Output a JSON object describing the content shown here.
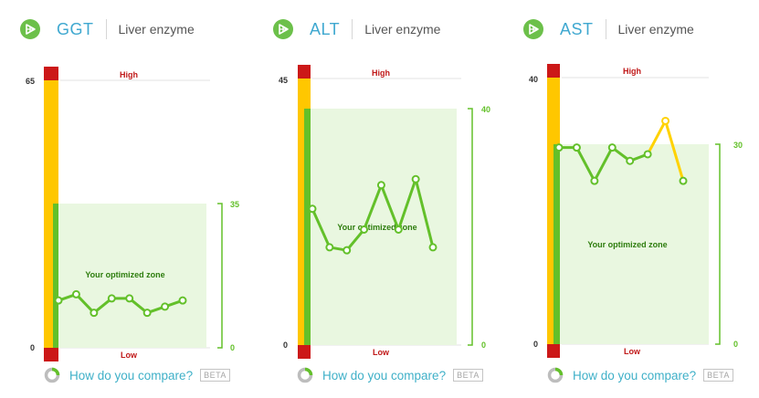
{
  "compare": {
    "label": "How do you compare?",
    "badge": "BETA"
  },
  "chart_data": [
    {
      "type": "line",
      "name": "GGT",
      "category": "Liver enzyme",
      "ylim": [
        0,
        65
      ],
      "y_ticks": [
        "65",
        "0"
      ],
      "high_label": "High",
      "low_label": "Low",
      "optimized_zone": {
        "label": "Your optimized zone",
        "min": 0,
        "max": 35,
        "max_label": "35",
        "min_label": "0"
      },
      "values": [
        11.5,
        13,
        8.5,
        12,
        12,
        8.5,
        10,
        11.5
      ]
    },
    {
      "type": "line",
      "name": "ALT",
      "category": "Liver enzyme",
      "ylim": [
        0,
        45
      ],
      "y_ticks": [
        "45",
        "0"
      ],
      "high_label": "High",
      "low_label": "Low",
      "optimized_zone": {
        "label": "Your optimized zone",
        "min": 0,
        "max": 40,
        "max_label": "40",
        "min_label": "0"
      },
      "values": [
        23,
        16.5,
        16,
        19.5,
        27,
        19.5,
        28,
        16.5
      ]
    },
    {
      "type": "line",
      "name": "AST",
      "category": "Liver enzyme",
      "ylim": [
        0,
        40
      ],
      "y_ticks": [
        "40",
        "0"
      ],
      "high_label": "High",
      "low_label": "Low",
      "optimized_zone": {
        "label": "Your optimized zone",
        "min": 0,
        "max": 30,
        "max_label": "30",
        "min_label": "0"
      },
      "values": [
        29.5,
        29.5,
        24.5,
        29.5,
        27.5,
        28.5,
        33.5,
        24.5
      ]
    }
  ],
  "colors": {
    "red": "#cc1818",
    "yellow": "#ffc700",
    "green": "#63c02a",
    "zone": "#e9f7e0",
    "line_hi": "#ffd200"
  }
}
